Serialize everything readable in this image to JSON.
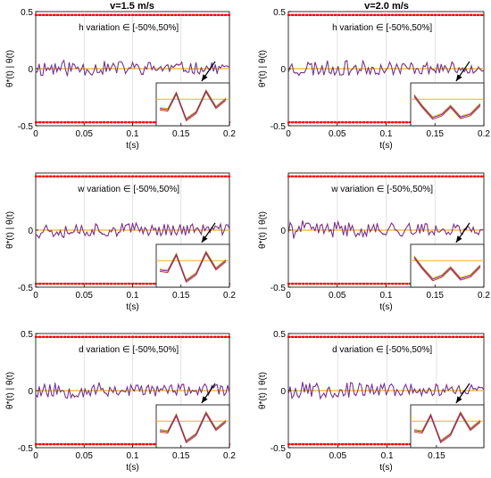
{
  "figure": {
    "column_titles": [
      "v=1.5 m/s",
      "v=2.0 m/s"
    ]
  },
  "legend_colors": {
    "bound": "#ff0000",
    "reference": "#f0b21e",
    "theta_ref": "#c83a1e",
    "theta": "#6a2fa0"
  },
  "chart_data": [
    {
      "type": "line",
      "panel": "row1-left",
      "annotation": "h variation ∈ [-50%,50%]",
      "xlabel": "t(s)",
      "ylabel": "θ*(t) | θ(t)",
      "xlim": [
        0,
        0.2
      ],
      "ylim": [
        -0.5,
        0.5
      ],
      "xticks": [
        "0",
        "0.05",
        "0.1",
        "0.15",
        "0.2"
      ],
      "yticks": [
        "0.5",
        "0",
        "-0.5"
      ],
      "bounds": [
        0.47,
        -0.47
      ],
      "grid": "vertical",
      "inset": true,
      "inset_shape": "wave-up",
      "seed": 11
    },
    {
      "type": "line",
      "panel": "row1-right",
      "annotation": "h variation ∈ [-50%,50%]",
      "xlabel": "t(s)",
      "ylabel": "θ*(t) | θ(t)",
      "xlim": [
        0,
        0.2
      ],
      "ylim": [
        -0.5,
        0.5
      ],
      "xticks": [
        "0",
        "0.05",
        "0.1",
        "0.15",
        "0.2"
      ],
      "yticks": [
        "0.5",
        "0",
        "-0.5"
      ],
      "bounds": [
        0.47,
        -0.47
      ],
      "grid": "vertical",
      "inset": true,
      "inset_shape": "wave-down",
      "seed": 23
    },
    {
      "type": "line",
      "panel": "row2-left",
      "annotation": "w variation ∈ [-50%,50%]",
      "xlabel": "t(s)",
      "ylabel": "θ*(t) | θ(t)",
      "xlim": [
        0,
        0.2
      ],
      "ylim": [
        -0.5,
        0.5
      ],
      "xticks": [
        "0",
        "0.05",
        "0.1",
        "0.15",
        "0.2"
      ],
      "yticks": [
        "0",
        "-0.5"
      ],
      "bounds": [
        0.47,
        -0.47
      ],
      "grid": "vertical",
      "inset": true,
      "inset_shape": "wave-up",
      "seed": 37
    },
    {
      "type": "line",
      "panel": "row2-right",
      "annotation": "w variation ∈ [-50%,50%]",
      "xlabel": "t(s)",
      "ylabel": "θ*(t) | θ(t)",
      "xlim": [
        0,
        0.2
      ],
      "ylim": [
        -0.5,
        0.5
      ],
      "xticks": [
        "0",
        "0.05",
        "0.1",
        "0.15",
        "0.2"
      ],
      "yticks": [
        "0",
        "-0.5"
      ],
      "bounds": [
        0.47,
        -0.47
      ],
      "grid": "vertical",
      "inset": true,
      "inset_shape": "wave-down",
      "seed": 41
    },
    {
      "type": "line",
      "panel": "row3-left",
      "annotation": "d variation ∈ [-50%,50%]",
      "xlabel": "t(s)",
      "ylabel": "θ*(t) | θ(t)",
      "xlim": [
        0,
        0.2
      ],
      "ylim": [
        -0.5,
        0.5
      ],
      "xticks": [
        "0",
        "0.05",
        "0.1",
        "0.15",
        "0.2"
      ],
      "yticks": [
        "0.5",
        "0",
        "-0.5"
      ],
      "bounds": [
        0.47,
        -0.47
      ],
      "grid": "vertical",
      "inset": true,
      "inset_shape": "wave-up",
      "seed": 53
    },
    {
      "type": "line",
      "panel": "row3-right",
      "annotation": "d variation ∈ [-50%,50%]",
      "xlabel": "t(s)",
      "ylabel": "θ*(t) | θ(t)",
      "xlim": [
        0,
        0.2
      ],
      "ylim": [
        -0.5,
        0.5
      ],
      "xticks": [
        "0",
        "0.05",
        "0.1",
        "0.15"
      ],
      "yticks": [
        "0.5",
        "0",
        "-0.5"
      ],
      "bounds": [
        0.47,
        -0.47
      ],
      "grid": "vertical",
      "inset": true,
      "inset_shape": "wave-up",
      "seed": 67
    }
  ]
}
